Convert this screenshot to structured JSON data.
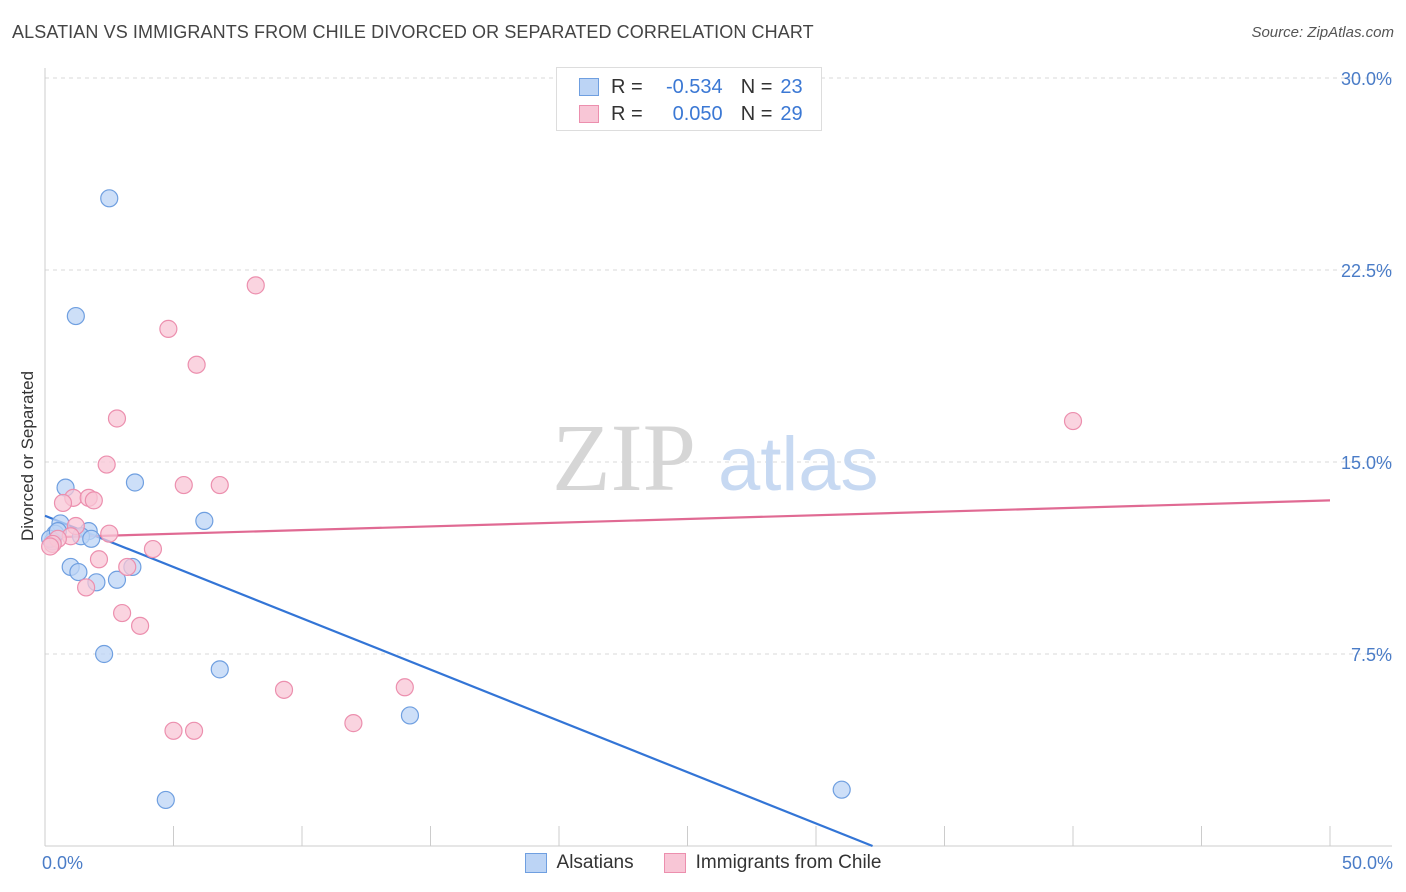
{
  "header": {
    "title": "ALSATIAN VS IMMIGRANTS FROM CHILE DIVORCED OR SEPARATED CORRELATION CHART",
    "source": "Source: ZipAtlas.com"
  },
  "watermark": {
    "zip": "ZIP",
    "atlas": "atlas"
  },
  "legend": {
    "rows": [
      {
        "r_label": "R =",
        "r_value": "-0.534",
        "n_label": "N =",
        "n_value": "23"
      },
      {
        "r_label": "R =",
        "r_value": "0.050",
        "n_label": "N =",
        "n_value": "29"
      }
    ]
  },
  "colors": {
    "alsatians_fill": "#bcd4f5",
    "alsatians_stroke": "#6f9fe0",
    "alsatians_line": "#3375d6",
    "chile_fill": "#f8c6d6",
    "chile_stroke": "#ec8fae",
    "chile_line": "#e06a93",
    "tick_label": "#4a7cc7",
    "grid": "#d9d9d9"
  },
  "chart_data": {
    "type": "scatter",
    "title": "ALSATIAN VS IMMIGRANTS FROM CHILE DIVORCED OR SEPARATED CORRELATION CHART",
    "xlabel": "",
    "ylabel": "Divorced or Separated",
    "xlim": [
      0,
      50
    ],
    "ylim": [
      0,
      30
    ],
    "x_tick_labels": [
      "0.0%",
      "50.0%"
    ],
    "y_ticks": [
      7.5,
      15.0,
      22.5,
      30.0
    ],
    "y_tick_labels": [
      "7.5%",
      "15.0%",
      "22.5%",
      "30.0%"
    ],
    "grid": "horizontal dashed",
    "legend_position": "bottom",
    "series": [
      {
        "name": "Alsatians",
        "color": "#6f9fe0",
        "points": [
          [
            2.5,
            25.3
          ],
          [
            1.2,
            20.7
          ],
          [
            3.5,
            14.2
          ],
          [
            0.8,
            14.0
          ],
          [
            6.2,
            12.7
          ],
          [
            0.6,
            12.6
          ],
          [
            1.7,
            12.3
          ],
          [
            0.4,
            12.2
          ],
          [
            1.4,
            12.1
          ],
          [
            1.8,
            12.0
          ],
          [
            0.3,
            11.9
          ],
          [
            0.2,
            12.0
          ],
          [
            1.0,
            10.9
          ],
          [
            1.3,
            10.7
          ],
          [
            3.4,
            10.9
          ],
          [
            2.0,
            10.3
          ],
          [
            2.8,
            10.4
          ],
          [
            2.3,
            7.5
          ],
          [
            6.8,
            6.9
          ],
          [
            14.2,
            5.1
          ],
          [
            4.7,
            1.8
          ],
          [
            31.0,
            2.2
          ],
          [
            0.5,
            12.3
          ]
        ],
        "trend": {
          "x0": 0,
          "y0": 12.9,
          "x1": 32.2,
          "y1": 0
        }
      },
      {
        "name": "Immigrants from Chile",
        "color": "#ec8fae",
        "points": [
          [
            8.2,
            21.9
          ],
          [
            4.8,
            20.2
          ],
          [
            5.9,
            18.8
          ],
          [
            2.8,
            16.7
          ],
          [
            40.0,
            16.6
          ],
          [
            2.4,
            14.9
          ],
          [
            5.4,
            14.1
          ],
          [
            6.8,
            14.1
          ],
          [
            1.1,
            13.6
          ],
          [
            1.7,
            13.6
          ],
          [
            0.7,
            13.4
          ],
          [
            1.9,
            13.5
          ],
          [
            1.2,
            12.5
          ],
          [
            2.5,
            12.2
          ],
          [
            1.0,
            12.1
          ],
          [
            0.5,
            12.0
          ],
          [
            0.3,
            11.8
          ],
          [
            4.2,
            11.6
          ],
          [
            2.1,
            11.2
          ],
          [
            3.2,
            10.9
          ],
          [
            1.6,
            10.1
          ],
          [
            3.0,
            9.1
          ],
          [
            3.7,
            8.6
          ],
          [
            9.3,
            6.1
          ],
          [
            14.0,
            6.2
          ],
          [
            12.0,
            4.8
          ],
          [
            5.0,
            4.5
          ],
          [
            5.8,
            4.5
          ],
          [
            0.2,
            11.7
          ]
        ],
        "trend": {
          "x0": 0,
          "y0": 12.05,
          "x1": 50,
          "y1": 13.5
        }
      }
    ]
  }
}
